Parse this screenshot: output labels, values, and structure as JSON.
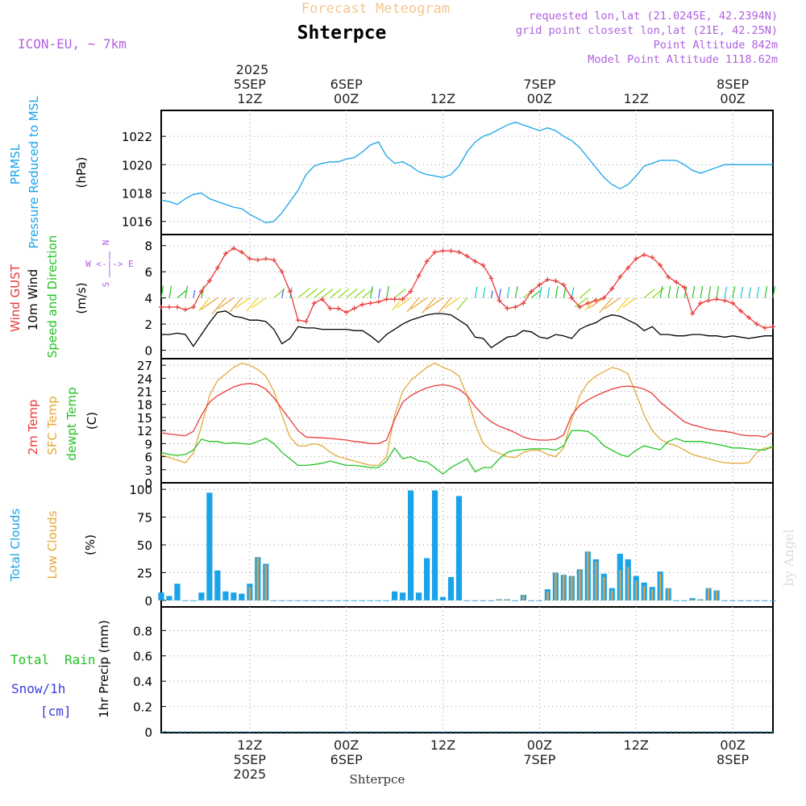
{
  "header": {
    "forecast_title": "Forecast Meteogram",
    "location": "Shterpce",
    "model": "ICON-EU, ~ 7km",
    "requested": "requested lon,lat (21.0245E, 42.2394N)",
    "closest": "grid point closest lon,lat (21E, 42.25N)",
    "point_alt": "Point Altitude 842m",
    "model_alt": "Model Point Altitude 1118.62m"
  },
  "footer": {
    "location": "Shterpce",
    "watermark": "by Angel"
  },
  "colors": {
    "pressure": "#1aa3e8",
    "gust": "#e83a3a",
    "wind": "#000000",
    "speed_dir": "#22c422",
    "temp": "#e83a3a",
    "sfc": "#e3a93a",
    "dewpt": "#22c422",
    "total_clouds": "#1aa3e8",
    "low_clouds": "#d4a04a",
    "rain": "#22c422",
    "snow": "#3c3cdc",
    "violet": "#b060e0",
    "header_orange": "#f2c893"
  },
  "time_axis": {
    "top_year": "2025",
    "ticks": [
      {
        "hour": 0,
        "hh": "12Z",
        "date": "5SEP",
        "year": "2025"
      },
      {
        "hour": 12,
        "hh": "00Z",
        "date": "6SEP",
        "year": ""
      },
      {
        "hour": 24,
        "hh": "12Z",
        "date": "",
        "year": ""
      },
      {
        "hour": 36,
        "hh": "00Z",
        "date": "7SEP",
        "year": ""
      },
      {
        "hour": 48,
        "hh": "12Z",
        "date": "",
        "year": ""
      },
      {
        "hour": 60,
        "hh": "00Z",
        "date": "8SEP",
        "year": ""
      }
    ],
    "range_hours": [
      -11,
      65
    ]
  },
  "chart_data": [
    {
      "type": "line",
      "panel": "pressure",
      "ylabels": [
        "PRMSL",
        "Pressure Reduced to MSL",
        "(hPa)"
      ],
      "yticks": [
        "1016",
        "1018",
        "1020",
        "1022"
      ],
      "ylim": [
        1015.3,
        1023.6
      ],
      "x": [
        -11,
        -10,
        -9,
        -8,
        -7,
        -6,
        -5,
        -4,
        -3,
        -2,
        -1,
        0,
        1,
        2,
        3,
        4,
        5,
        6,
        7,
        8,
        9,
        10,
        11,
        12,
        13,
        14,
        15,
        16,
        17,
        18,
        19,
        20,
        21,
        22,
        23,
        24,
        25,
        26,
        27,
        28,
        29,
        30,
        31,
        32,
        33,
        34,
        35,
        36,
        37,
        38,
        39,
        40,
        41,
        42,
        43,
        44,
        45,
        46,
        47,
        48,
        49,
        50,
        51,
        52,
        53,
        54,
        55,
        56,
        57,
        58,
        59,
        60,
        61,
        62,
        63,
        64,
        65
      ],
      "series": [
        {
          "name": "PRMSL",
          "values": [
            1017.5,
            1017.4,
            1017.2,
            1017.6,
            1017.9,
            1018.0,
            1017.6,
            1017.4,
            1017.2,
            1017.0,
            1016.9,
            1016.5,
            1016.2,
            1015.9,
            1016.0,
            1016.6,
            1017.4,
            1018.2,
            1019.3,
            1019.9,
            1020.1,
            1020.2,
            1020.2,
            1020.4,
            1020.5,
            1020.9,
            1021.4,
            1021.6,
            1020.6,
            1020.1,
            1020.2,
            1019.9,
            1019.5,
            1019.3,
            1019.2,
            1019.1,
            1019.3,
            1019.9,
            1020.9,
            1021.6,
            1022.0,
            1022.2,
            1022.5,
            1022.8,
            1023.0,
            1022.8,
            1022.6,
            1022.4,
            1022.6,
            1022.4,
            1022.0,
            1021.7,
            1021.2,
            1020.5,
            1019.8,
            1019.1,
            1018.6,
            1018.3,
            1018.6,
            1019.2,
            1019.9,
            1020.1,
            1020.3,
            1020.3,
            1020.3,
            1020.0,
            1019.6,
            1019.4,
            1019.6,
            1019.8,
            1020.0,
            1020.0,
            1020.0,
            1020.0,
            1020.0,
            1020.0,
            1020.0
          ]
        }
      ]
    },
    {
      "type": "line",
      "panel": "wind",
      "ylabels": [
        "Wind GUST",
        "10m Wind",
        "Speed and Direction",
        "(m/s)"
      ],
      "compass": "W <-|-> E",
      "yticks": [
        "0",
        "2",
        "4",
        "6",
        "8"
      ],
      "ylim": [
        -0.4,
        8.6
      ],
      "x": [
        -11,
        -10,
        -9,
        -8,
        -7,
        -6,
        -5,
        -4,
        -3,
        -2,
        -1,
        0,
        1,
        2,
        3,
        4,
        5,
        6,
        7,
        8,
        9,
        10,
        11,
        12,
        13,
        14,
        15,
        16,
        17,
        18,
        19,
        20,
        21,
        22,
        23,
        24,
        25,
        26,
        27,
        28,
        29,
        30,
        31,
        32,
        33,
        34,
        35,
        36,
        37,
        38,
        39,
        40,
        41,
        42,
        43,
        44,
        45,
        46,
        47,
        48,
        49,
        50,
        51,
        52,
        53,
        54,
        55,
        56,
        57,
        58,
        59,
        60,
        61,
        62,
        63,
        64,
        65
      ],
      "series": [
        {
          "name": "Wind GUST",
          "values": [
            3.3,
            3.3,
            3.3,
            3.1,
            3.3,
            4.5,
            5.3,
            6.3,
            7.4,
            7.8,
            7.5,
            7.0,
            6.9,
            7.0,
            6.9,
            6.0,
            4.5,
            2.3,
            2.2,
            3.6,
            3.9,
            3.2,
            3.2,
            2.9,
            3.2,
            3.5,
            3.6,
            3.7,
            3.9,
            3.9,
            3.9,
            4.5,
            5.7,
            6.8,
            7.5,
            7.6,
            7.6,
            7.5,
            7.2,
            6.8,
            6.5,
            5.5,
            3.8,
            3.2,
            3.3,
            3.6,
            4.5,
            5.0,
            5.4,
            5.3,
            5.0,
            4.0,
            3.3,
            3.6,
            3.8,
            4.0,
            4.7,
            5.6,
            6.3,
            7.0,
            7.3,
            7.1,
            6.5,
            5.6,
            5.2,
            4.8,
            2.8,
            3.6,
            3.8,
            3.9,
            3.8,
            3.6,
            3.0,
            2.5,
            2.0,
            1.7,
            1.8
          ]
        },
        {
          "name": "10m Wind",
          "values": [
            1.2,
            1.2,
            1.3,
            1.2,
            0.3,
            1.2,
            2.1,
            2.9,
            3.0,
            2.6,
            2.5,
            2.3,
            2.3,
            2.2,
            1.6,
            0.5,
            0.9,
            1.8,
            1.7,
            1.7,
            1.6,
            1.6,
            1.6,
            1.6,
            1.5,
            1.5,
            1.1,
            0.6,
            1.2,
            1.6,
            2.0,
            2.3,
            2.5,
            2.7,
            2.8,
            2.8,
            2.7,
            2.3,
            1.9,
            1.0,
            0.9,
            0.2,
            0.6,
            1.0,
            1.1,
            1.5,
            1.4,
            1.0,
            0.9,
            1.2,
            1.1,
            0.9,
            1.6,
            1.9,
            2.1,
            2.5,
            2.7,
            2.6,
            2.3,
            2.0,
            1.5,
            1.8,
            1.2,
            1.2,
            1.1,
            1.1,
            1.2,
            1.2,
            1.1,
            1.1,
            1.0,
            1.1,
            1.0,
            0.9,
            1.0,
            1.1,
            1.1
          ]
        }
      ]
    },
    {
      "type": "line",
      "panel": "temperature",
      "ylabels": [
        "2m Temp",
        "SFC Temp",
        "dewpt Temp",
        "(C)"
      ],
      "yticks": [
        "0",
        "3",
        "6",
        "9",
        "12",
        "15",
        "18",
        "21",
        "24",
        "27"
      ],
      "ylim": [
        0,
        28.5
      ],
      "x": [
        -11,
        -10,
        -9,
        -8,
        -7,
        -6,
        -5,
        -4,
        -3,
        -2,
        -1,
        0,
        1,
        2,
        3,
        4,
        5,
        6,
        7,
        8,
        9,
        10,
        11,
        12,
        13,
        14,
        15,
        16,
        17,
        18,
        19,
        20,
        21,
        22,
        23,
        24,
        25,
        26,
        27,
        28,
        29,
        30,
        31,
        32,
        33,
        34,
        35,
        36,
        37,
        38,
        39,
        40,
        41,
        42,
        43,
        44,
        45,
        46,
        47,
        48,
        49,
        50,
        51,
        52,
        53,
        54,
        55,
        56,
        57,
        58,
        59,
        60,
        61,
        62,
        63,
        64,
        65
      ],
      "series": [
        {
          "name": "2m Temp",
          "values": [
            11.5,
            11.2,
            11.0,
            10.8,
            11.8,
            15.5,
            18.5,
            20.0,
            21.0,
            22.0,
            22.6,
            22.8,
            22.5,
            21.5,
            19.5,
            17.0,
            14.5,
            12.0,
            10.5,
            10.4,
            10.3,
            10.2,
            10.0,
            9.8,
            9.5,
            9.3,
            9.0,
            9.0,
            9.8,
            14.5,
            18.5,
            20.0,
            21.0,
            21.8,
            22.3,
            22.5,
            22.2,
            21.5,
            20.0,
            17.5,
            15.5,
            14.0,
            13.0,
            12.3,
            11.5,
            10.5,
            10.0,
            9.8,
            9.8,
            10.0,
            11.0,
            15.5,
            17.8,
            19.0,
            20.0,
            20.8,
            21.5,
            22.0,
            22.2,
            22.0,
            21.5,
            20.5,
            18.5,
            17.0,
            15.5,
            14.0,
            13.3,
            12.8,
            12.3,
            12.0,
            11.8,
            11.5,
            11.0,
            10.8,
            10.8,
            10.5,
            11.6
          ]
        },
        {
          "name": "SFC Temp",
          "values": [
            6.5,
            5.8,
            5.2,
            4.6,
            6.8,
            13.0,
            20.0,
            23.5,
            25.0,
            26.5,
            27.5,
            27.0,
            26.0,
            24.5,
            21.0,
            15.5,
            10.5,
            8.5,
            8.5,
            9.0,
            8.5,
            7.0,
            6.0,
            5.5,
            5.0,
            4.5,
            4.0,
            4.0,
            6.0,
            15.5,
            21.0,
            23.5,
            25.0,
            26.5,
            27.5,
            26.5,
            25.8,
            24.5,
            20.0,
            13.5,
            9.0,
            7.5,
            6.8,
            6.0,
            5.8,
            7.0,
            7.5,
            7.5,
            6.5,
            6.0,
            8.0,
            14.5,
            20.0,
            23.0,
            24.5,
            25.5,
            26.5,
            26.0,
            25.0,
            20.5,
            15.5,
            12.0,
            10.0,
            9.0,
            8.5,
            7.5,
            6.5,
            6.0,
            5.5,
            5.0,
            4.6,
            4.5,
            4.5,
            4.6,
            7.0,
            8.0,
            8.0
          ]
        },
        {
          "name": "dewpt Temp",
          "values": [
            7.0,
            6.5,
            6.3,
            6.5,
            7.5,
            10.0,
            9.5,
            9.5,
            9.0,
            9.2,
            9.0,
            8.8,
            9.5,
            10.2,
            9.0,
            7.0,
            5.5,
            4.0,
            4.0,
            4.2,
            4.5,
            5.0,
            4.5,
            4.0,
            4.0,
            3.8,
            3.5,
            3.5,
            5.0,
            8.0,
            5.5,
            6.0,
            5.0,
            4.8,
            3.5,
            2.0,
            3.5,
            4.5,
            5.5,
            2.5,
            3.5,
            3.5,
            5.5,
            7.0,
            7.5,
            7.6,
            7.8,
            7.8,
            7.8,
            7.5,
            8.5,
            12.0,
            12.0,
            11.8,
            10.5,
            8.5,
            7.5,
            6.5,
            6.0,
            7.5,
            8.5,
            8.0,
            7.6,
            9.5,
            10.2,
            9.5,
            9.5,
            9.5,
            9.2,
            8.8,
            8.5,
            8.0,
            8.0,
            7.8,
            7.6,
            7.5,
            8.5
          ]
        }
      ]
    },
    {
      "type": "bar",
      "panel": "clouds",
      "ylabels": [
        "Total Clouds",
        "Low Clouds",
        "(%)"
      ],
      "yticks": [
        "0",
        "25",
        "50",
        "75",
        "100"
      ],
      "ylim": [
        -3,
        103
      ],
      "x": [
        -11,
        -10,
        -9,
        -8,
        -7,
        -6,
        -5,
        -4,
        -3,
        -2,
        -1,
        0,
        1,
        2,
        3,
        4,
        5,
        6,
        7,
        8,
        9,
        10,
        11,
        12,
        13,
        14,
        15,
        16,
        17,
        18,
        19,
        20,
        21,
        22,
        23,
        24,
        25,
        26,
        27,
        28,
        29,
        30,
        31,
        32,
        33,
        34,
        35,
        36,
        37,
        38,
        39,
        40,
        41,
        42,
        43,
        44,
        45,
        46,
        47,
        48,
        49,
        50,
        51,
        52,
        53,
        54,
        55,
        56,
        57,
        58,
        59,
        60,
        61,
        62,
        63,
        64,
        65
      ],
      "series": [
        {
          "name": "Total Clouds",
          "values": [
            7,
            4,
            15,
            0,
            0,
            7,
            97,
            27,
            8,
            7,
            6,
            15,
            39,
            33,
            0,
            0,
            0,
            0,
            0,
            0,
            0,
            0,
            0,
            0,
            0,
            0,
            0,
            0,
            0,
            8,
            7,
            99,
            7,
            38,
            99,
            3,
            21,
            94,
            0,
            0,
            0,
            0,
            1,
            1,
            0,
            5,
            0,
            0,
            10,
            25,
            23,
            22,
            28,
            44,
            37,
            24,
            11,
            42,
            37,
            22,
            16,
            12,
            26,
            11,
            0,
            0,
            2,
            1,
            11,
            9,
            0,
            0,
            0,
            0,
            0,
            0,
            0
          ]
        },
        {
          "name": "Low Clouds",
          "values": [
            0,
            0,
            0,
            0,
            0,
            0,
            0,
            0,
            0,
            0,
            0,
            12,
            39,
            32,
            0,
            0,
            0,
            0,
            0,
            0,
            0,
            0,
            0,
            0,
            0,
            0,
            0,
            0,
            0,
            0,
            0,
            0,
            0,
            0,
            0,
            0,
            0,
            0,
            0,
            0,
            0,
            0,
            1,
            1,
            0,
            5,
            0,
            0,
            8,
            25,
            23,
            22,
            28,
            44,
            35,
            21,
            9,
            27,
            30,
            18,
            13,
            10,
            24,
            11,
            0,
            0,
            1,
            1,
            11,
            9,
            0,
            0,
            0,
            0,
            0,
            0,
            0
          ]
        }
      ]
    },
    {
      "type": "bar",
      "panel": "precip",
      "ylabels": [
        "1hr Precip (mm)"
      ],
      "legend": {
        "total": "Total",
        "rain": "Rain",
        "snow": "Snow/1h",
        "cm": "[cm]"
      },
      "yticks": [
        "0",
        "0.2",
        "0.4",
        "0.6",
        "0.8"
      ],
      "ylim": [
        0,
        0.98
      ],
      "x": [
        -11,
        65
      ],
      "series": [
        {
          "name": "Total",
          "values": [
            0,
            0
          ]
        }
      ]
    }
  ]
}
